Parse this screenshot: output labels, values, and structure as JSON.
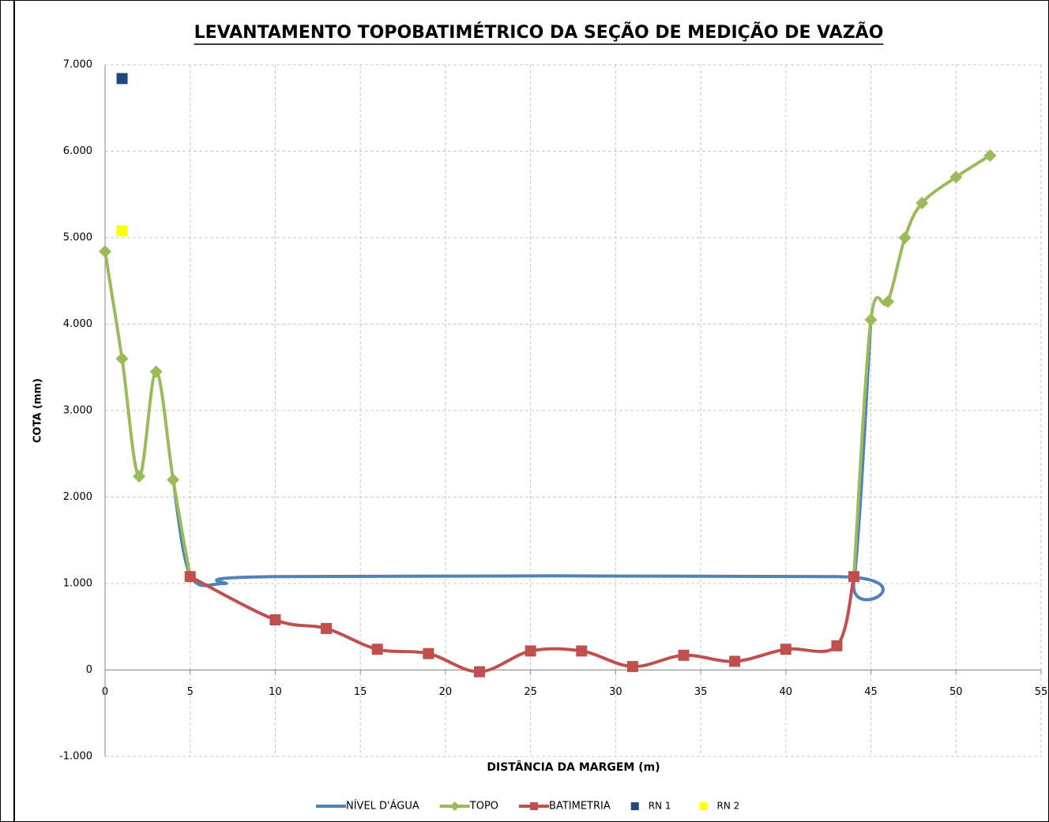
{
  "chart_data": {
    "type": "line",
    "title": "LEVANTAMENTO TOPOBATIMÉTRICO DA SEÇÃO DE MEDIÇÃO DE VAZÃO",
    "x_label": "DISTÂNCIA DA MARGEM (m)",
    "y_label": "COTA (mm)",
    "xlim": [
      0,
      55
    ],
    "xticks": [
      0,
      5,
      10,
      15,
      20,
      25,
      30,
      35,
      40,
      45,
      50,
      55
    ],
    "ylim": [
      -1000,
      7000
    ],
    "yticks": [
      {
        "value": -1000,
        "label": "-1.000"
      },
      0,
      {
        "value": 1000,
        "label": "1.000"
      },
      {
        "value": 2000,
        "label": "2.000"
      },
      {
        "value": 3000,
        "label": "3.000"
      },
      {
        "value": 4000,
        "label": "4.000"
      },
      {
        "value": 5000,
        "label": "5.000"
      },
      {
        "value": 6000,
        "label": "6.000"
      },
      {
        "value": 7000,
        "label": "7.000"
      }
    ],
    "grid": true,
    "legend": "bottom",
    "series": [
      {
        "name": "NÍVEL D'ÁGUA",
        "color": "#4f81bd",
        "marker": "none",
        "x": [
          4,
          5,
          7,
          10,
          43,
          44,
          45
        ],
        "values": [
          2200,
          1100,
          1000,
          1080,
          1080,
          1020,
          4050
        ]
      },
      {
        "name": "TOPO",
        "color": "#9bbb59",
        "marker": "diamond",
        "x": [
          0,
          1,
          2,
          3,
          4,
          5,
          null,
          44,
          45,
          46,
          47,
          48,
          50,
          52
        ],
        "values": [
          4840,
          3600,
          2240,
          3450,
          2200,
          1080,
          null,
          1080,
          4050,
          4260,
          5000,
          5400,
          5700,
          5950
        ]
      },
      {
        "name": "BATIMETRIA",
        "color": "#c0504d",
        "marker": "square",
        "x": [
          5,
          10,
          13,
          16,
          19,
          22,
          25,
          28,
          31,
          34,
          37,
          40,
          43,
          44
        ],
        "values": [
          1080,
          580,
          480,
          240,
          190,
          -20,
          220,
          220,
          40,
          170,
          100,
          240,
          280,
          1080
        ]
      },
      {
        "name": "RN 1",
        "color": "#1f497d",
        "marker": "square",
        "line": false,
        "x": [
          1
        ],
        "values": [
          6840
        ]
      },
      {
        "name": "RN 2",
        "color": "#ffff00",
        "marker": "square",
        "line": false,
        "x": [
          1
        ],
        "values": [
          5080
        ]
      }
    ]
  }
}
